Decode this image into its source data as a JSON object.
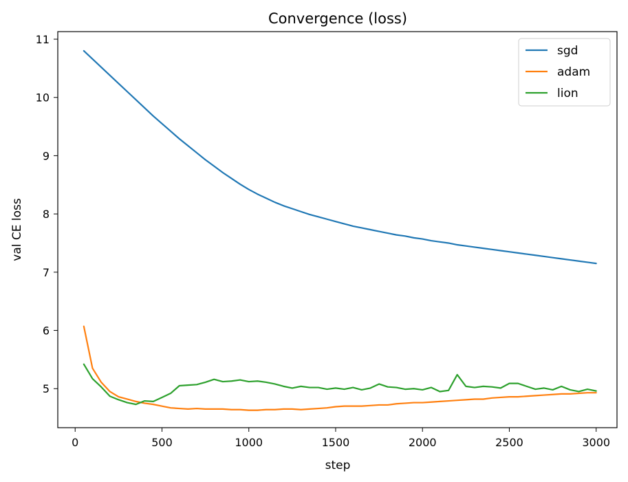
{
  "chart_data": {
    "type": "line",
    "title": "Convergence (loss)",
    "xlabel": "step",
    "ylabel": "val CE loss",
    "xlim": [
      -100,
      3120
    ],
    "ylim": [
      4.33,
      11.13
    ],
    "xticks": [
      0,
      500,
      1000,
      1500,
      2000,
      2500,
      3000
    ],
    "yticks": [
      5,
      6,
      7,
      8,
      9,
      10,
      11
    ],
    "grid": false,
    "legend_position": "top-right",
    "series": [
      {
        "name": "sgd",
        "color": "#1f77b4",
        "x": [
          50,
          100,
          150,
          200,
          250,
          300,
          350,
          400,
          450,
          500,
          550,
          600,
          650,
          700,
          750,
          800,
          850,
          900,
          950,
          1000,
          1050,
          1100,
          1150,
          1200,
          1250,
          1300,
          1350,
          1400,
          1450,
          1500,
          1550,
          1600,
          1650,
          1700,
          1750,
          1800,
          1850,
          1900,
          1950,
          2000,
          2050,
          2100,
          2150,
          2200,
          2250,
          2300,
          2350,
          2400,
          2450,
          2500,
          2550,
          2600,
          2650,
          2700,
          2750,
          2800,
          2850,
          2900,
          2950,
          3000
        ],
        "y": [
          10.8,
          10.66,
          10.52,
          10.38,
          10.24,
          10.1,
          9.96,
          9.82,
          9.68,
          9.55,
          9.42,
          9.29,
          9.17,
          9.05,
          8.93,
          8.82,
          8.71,
          8.61,
          8.51,
          8.42,
          8.34,
          8.27,
          8.2,
          8.14,
          8.09,
          8.04,
          7.99,
          7.95,
          7.91,
          7.87,
          7.83,
          7.79,
          7.76,
          7.73,
          7.7,
          7.67,
          7.64,
          7.62,
          7.59,
          7.57,
          7.54,
          7.52,
          7.5,
          7.47,
          7.45,
          7.43,
          7.41,
          7.39,
          7.37,
          7.35,
          7.33,
          7.31,
          7.29,
          7.27,
          7.25,
          7.23,
          7.21,
          7.19,
          7.17,
          7.15
        ]
      },
      {
        "name": "adam",
        "color": "#ff7f0e",
        "x": [
          50,
          100,
          150,
          200,
          250,
          300,
          350,
          400,
          450,
          500,
          550,
          600,
          650,
          700,
          750,
          800,
          850,
          900,
          950,
          1000,
          1050,
          1100,
          1150,
          1200,
          1250,
          1300,
          1350,
          1400,
          1450,
          1500,
          1550,
          1600,
          1650,
          1700,
          1750,
          1800,
          1850,
          1900,
          1950,
          2000,
          2050,
          2100,
          2150,
          2200,
          2250,
          2300,
          2350,
          2400,
          2450,
          2500,
          2550,
          2600,
          2650,
          2700,
          2750,
          2800,
          2850,
          2900,
          2950,
          3000
        ],
        "y": [
          6.07,
          5.35,
          5.11,
          4.95,
          4.86,
          4.82,
          4.78,
          4.75,
          4.73,
          4.7,
          4.67,
          4.66,
          4.65,
          4.66,
          4.65,
          4.65,
          4.65,
          4.64,
          4.64,
          4.63,
          4.63,
          4.64,
          4.64,
          4.65,
          4.65,
          4.64,
          4.65,
          4.66,
          4.67,
          4.69,
          4.7,
          4.7,
          4.7,
          4.71,
          4.72,
          4.72,
          4.74,
          4.75,
          4.76,
          4.76,
          4.77,
          4.78,
          4.79,
          4.8,
          4.81,
          4.82,
          4.82,
          4.84,
          4.85,
          4.86,
          4.86,
          4.87,
          4.88,
          4.89,
          4.9,
          4.91,
          4.91,
          4.92,
          4.93,
          4.93
        ]
      },
      {
        "name": "lion",
        "color": "#2ca02c",
        "x": [
          50,
          100,
          150,
          200,
          250,
          300,
          350,
          400,
          450,
          500,
          550,
          600,
          650,
          700,
          750,
          800,
          850,
          900,
          950,
          1000,
          1050,
          1100,
          1150,
          1200,
          1250,
          1300,
          1350,
          1400,
          1450,
          1500,
          1550,
          1600,
          1650,
          1700,
          1750,
          1800,
          1850,
          1900,
          1950,
          2000,
          2050,
          2100,
          2150,
          2200,
          2250,
          2300,
          2350,
          2400,
          2450,
          2500,
          2550,
          2600,
          2650,
          2700,
          2750,
          2800,
          2850,
          2900,
          2950,
          3000
        ],
        "y": [
          5.42,
          5.17,
          5.03,
          4.87,
          4.81,
          4.76,
          4.73,
          4.79,
          4.78,
          4.85,
          4.92,
          5.05,
          5.06,
          5.07,
          5.11,
          5.16,
          5.12,
          5.13,
          5.15,
          5.12,
          5.13,
          5.11,
          5.08,
          5.04,
          5.01,
          5.04,
          5.02,
          5.02,
          4.99,
          5.01,
          4.99,
          5.02,
          4.98,
          5.01,
          5.08,
          5.03,
          5.02,
          4.99,
          5.0,
          4.98,
          5.02,
          4.95,
          4.97,
          5.24,
          5.04,
          5.02,
          5.04,
          5.03,
          5.01,
          5.09,
          5.09,
          5.04,
          4.99,
          5.01,
          4.98,
          5.04,
          4.98,
          4.95,
          4.99,
          4.96
        ]
      }
    ]
  }
}
